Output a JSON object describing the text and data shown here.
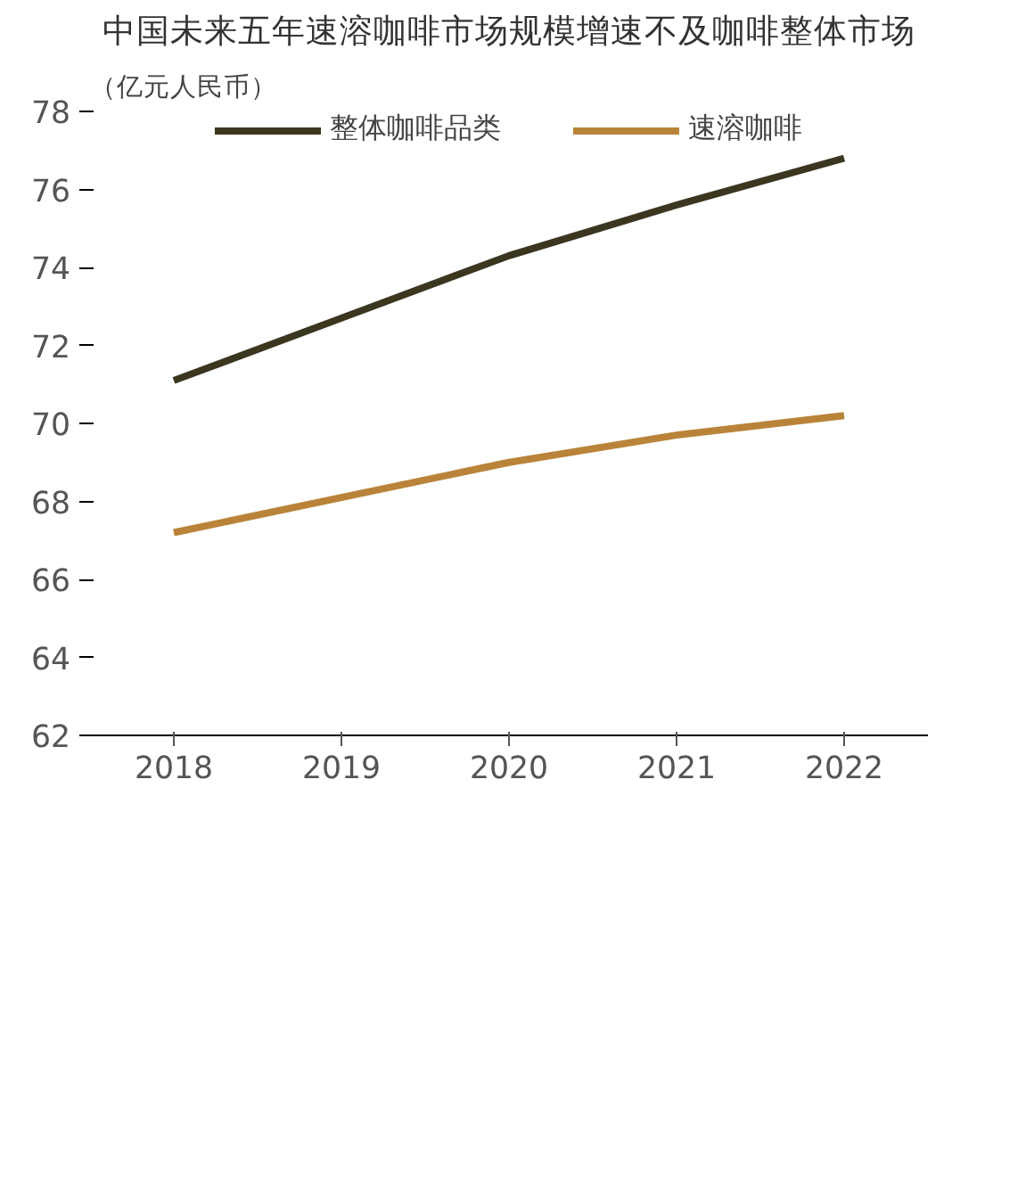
{
  "chart_data": {
    "type": "line",
    "title": "中国未来五年速溶咖啡市场规模增速不及咖啡整体市场",
    "ylabel": "（亿元人民币）",
    "categories": [
      "2018",
      "2019",
      "2020",
      "2021",
      "2022"
    ],
    "series": [
      {
        "name": "整体咖啡品类",
        "color": "#3b3620",
        "values": [
          71.1,
          72.7,
          74.3,
          75.6,
          76.8
        ]
      },
      {
        "name": "速溶咖啡",
        "color": "#b9843a",
        "values": [
          67.2,
          68.1,
          69.0,
          69.7,
          70.2
        ]
      }
    ],
    "ylim": [
      62,
      78
    ],
    "yticks": [
      62,
      64,
      66,
      68,
      70,
      72,
      74,
      76,
      78
    ],
    "grid": false,
    "legend": "top",
    "marker": "none",
    "line_style": "solid"
  }
}
